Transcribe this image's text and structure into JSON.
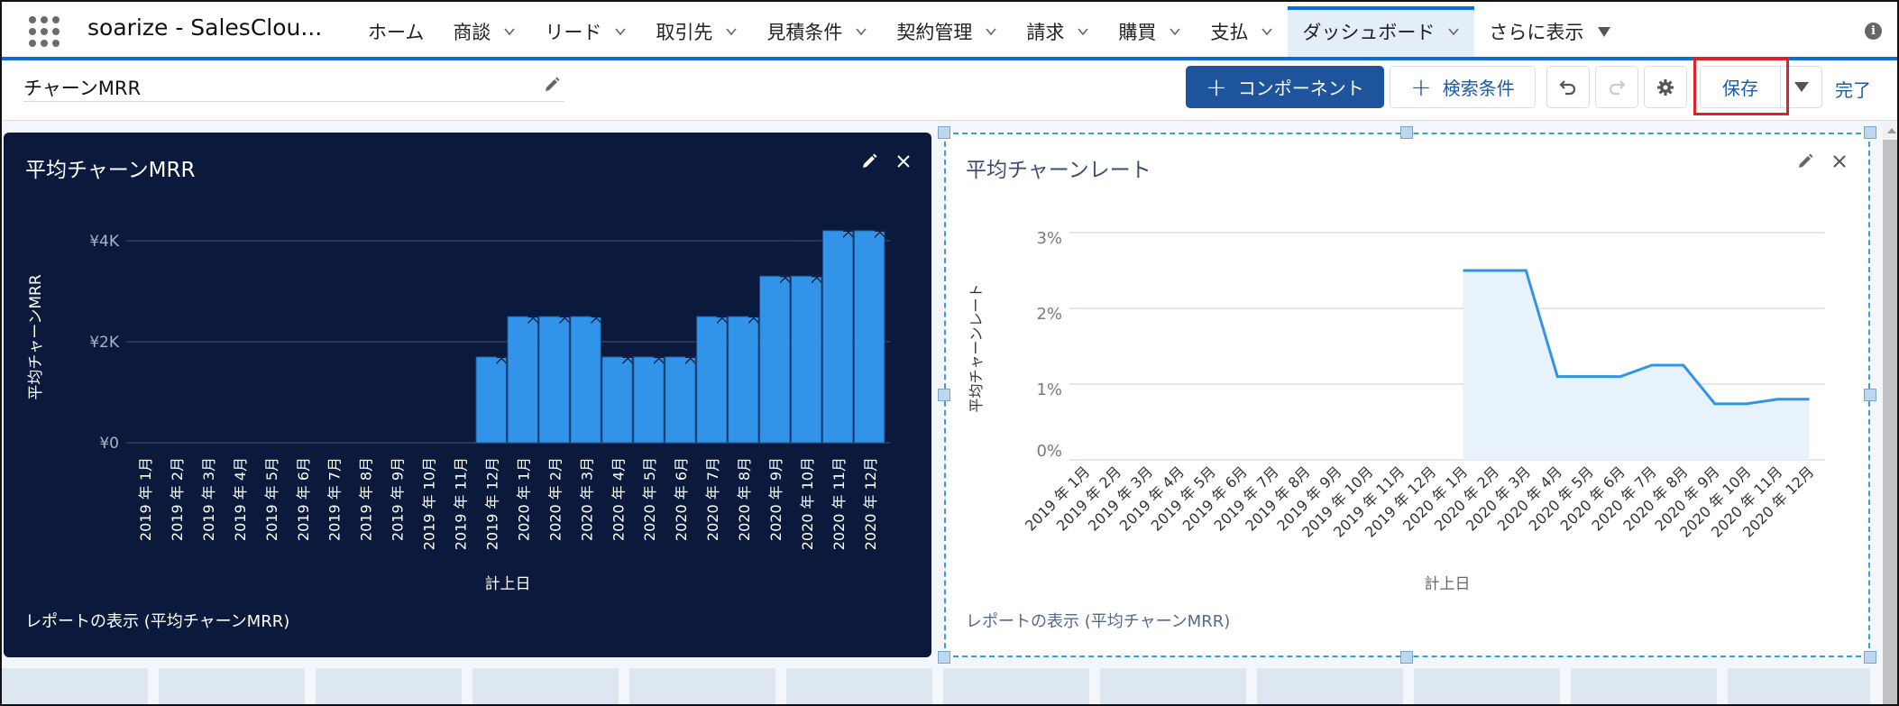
{
  "nav": {
    "app_name": "soarize - SalesClou...",
    "items": [
      {
        "label": "ホーム",
        "dropdown": false
      },
      {
        "label": "商談",
        "dropdown": true
      },
      {
        "label": "リード",
        "dropdown": true
      },
      {
        "label": "取引先",
        "dropdown": true
      },
      {
        "label": "見積条件",
        "dropdown": true
      },
      {
        "label": "契約管理",
        "dropdown": true
      },
      {
        "label": "請求",
        "dropdown": true
      },
      {
        "label": "購買",
        "dropdown": true
      },
      {
        "label": "支払",
        "dropdown": true
      },
      {
        "label": "ダッシュボード",
        "dropdown": true,
        "active": true
      }
    ],
    "more_label": "さらに表示",
    "info_icon": "i"
  },
  "toolbar": {
    "dashboard_title": "チャーンMRR",
    "component_button": "コンポーネント",
    "filter_button": "検索条件",
    "save_button": "保存",
    "done_link": "完了"
  },
  "left_panel": {
    "title": "平均チャーンMRR",
    "report_link": "レポートの表示 (平均チャーンMRR)",
    "bg_color": "#0b1a3c",
    "bar_color": "#3294e8"
  },
  "right_panel": {
    "title": "平均チャーンレート",
    "report_link": "レポートの表示 (平均チャーンMRR)",
    "line_color": "#3294e8",
    "fill_color": "#e8f2fb"
  },
  "chart_data": [
    {
      "type": "bar",
      "title": "平均チャーンMRR",
      "xlabel": "計上日",
      "ylabel": "平均チャーンMRR",
      "ylim": [
        0,
        4500
      ],
      "yticks": [
        "¥0",
        "¥2K",
        "¥4K"
      ],
      "grid": true,
      "categories": [
        "2019 年 1月",
        "2019 年 2月",
        "2019 年 3月",
        "2019 年 4月",
        "2019 年 5月",
        "2019 年 6月",
        "2019 年 7月",
        "2019 年 8月",
        "2019 年 9月",
        "2019 年 10月",
        "2019 年 11月",
        "2019 年 12月",
        "2020 年 1月",
        "2020 年 2月",
        "2020 年 3月",
        "2020 年 4月",
        "2020 年 5月",
        "2020 年 6月",
        "2020 年 7月",
        "2020 年 8月",
        "2020 年 9月",
        "2020 年 10月",
        "2020 年 11月",
        "2020 年 12月"
      ],
      "values": [
        null,
        null,
        null,
        null,
        null,
        null,
        null,
        null,
        null,
        null,
        null,
        1700,
        2500,
        2500,
        2500,
        1700,
        1700,
        1700,
        2500,
        2500,
        3300,
        3300,
        4200,
        4200
      ],
      "data_labels": [
        null,
        null,
        null,
        null,
        null,
        null,
        null,
        null,
        null,
        null,
        null,
        "¥ 1.7K",
        "¥ 2.5K",
        "¥ 2.5K",
        "¥ 2.5K",
        "¥ 1.7K",
        "¥ 1.7K",
        "¥ 1.7K",
        "¥ 2.5K",
        "¥ 2.5K",
        "¥ 3.3K",
        "¥ 3.3K",
        "¥ 4.2K",
        "¥ 4.2K"
      ]
    },
    {
      "type": "area",
      "title": "平均チャーンレート",
      "xlabel": "計上日",
      "ylabel": "平均チャーンレート",
      "ylim": [
        0,
        3
      ],
      "yticks": [
        "0%",
        "1%",
        "2%",
        "3%"
      ],
      "grid": true,
      "categories": [
        "2019 年 1月",
        "2019 年 2月",
        "2019 年 3月",
        "2019 年 4月",
        "2019 年 5月",
        "2019 年 6月",
        "2019 年 7月",
        "2019 年 8月",
        "2019 年 9月",
        "2019 年 10月",
        "2019 年 11月",
        "2019 年 12月",
        "2020 年 1月",
        "2020 年 2月",
        "2020 年 3月",
        "2020 年 4月",
        "2020 年 5月",
        "2020 年 6月",
        "2020 年 7月",
        "2020 年 8月",
        "2020 年 9月",
        "2020 年 10月",
        "2020 年 11月",
        "2020 年 12月"
      ],
      "values": [
        null,
        null,
        null,
        null,
        null,
        null,
        null,
        null,
        null,
        null,
        null,
        null,
        2.5,
        2.5,
        2.5,
        1.1,
        1.1,
        1.1,
        1.25,
        1.25,
        0.74,
        0.74,
        0.8,
        0.8
      ]
    }
  ]
}
